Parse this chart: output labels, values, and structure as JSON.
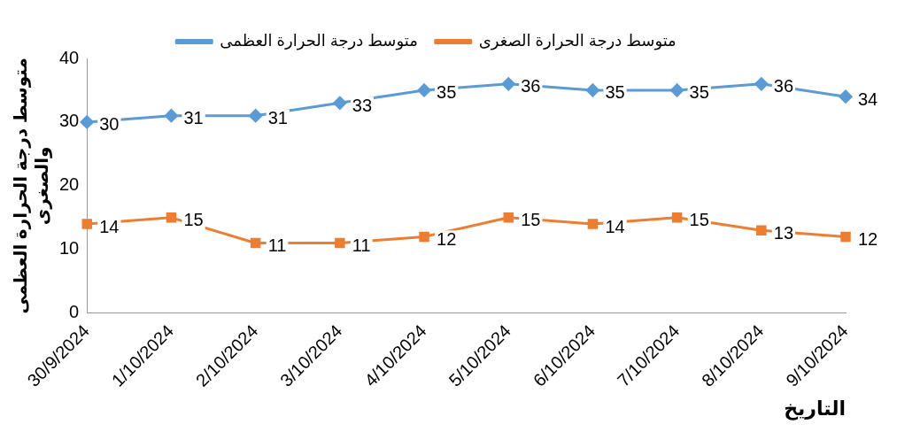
{
  "chart_data": {
    "type": "line",
    "xlabel": "التاريخ",
    "ylabel": "متوسط درجة الحرارة العظمى والصغرى",
    "categories": [
      "30/9/2024",
      "1/10/2024",
      "2/10/2024",
      "3/10/2024",
      "4/10/2024",
      "5/10/2024",
      "6/10/2024",
      "7/10/2024",
      "8/10/2024",
      "9/10/2024"
    ],
    "series": [
      {
        "name": "متوسط درجة الحرارة العظمى",
        "color": "#5b9bd5",
        "marker": "diamond",
        "values": [
          30,
          31,
          31,
          33,
          35,
          36,
          35,
          35,
          36,
          34
        ]
      },
      {
        "name": "متوسط درجة الحرارة الصغرى",
        "color": "#ed7d31",
        "marker": "square",
        "values": [
          14,
          15,
          11,
          11,
          12,
          15,
          14,
          15,
          13,
          12
        ]
      }
    ],
    "ylim": [
      0,
      40
    ],
    "yticks": [
      0,
      10,
      20,
      30,
      40
    ],
    "grid": false,
    "legend": "top",
    "data_labels": true
  }
}
